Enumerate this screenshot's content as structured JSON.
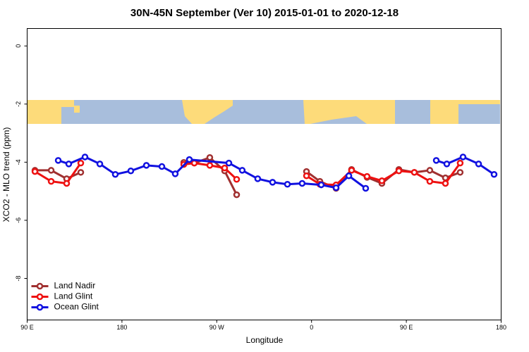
{
  "chart_data": {
    "type": "line",
    "title": "30N-45N September (Ver 10)   2015-01-01 to 2020-12-18",
    "x_label": "Longitude",
    "y_label": "XCO2 - MLO trend (ppm)",
    "xlim": [
      90,
      540
    ],
    "ylim": [
      -9.43,
      0.6
    ],
    "xticks": [
      {
        "value": 90,
        "label": "90 E"
      },
      {
        "value": 180,
        "label": "180"
      },
      {
        "value": 270,
        "label": "90 W"
      },
      {
        "value": 360,
        "label": "0"
      },
      {
        "value": 450,
        "label": "90 E"
      },
      {
        "value": 540,
        "label": "180"
      }
    ],
    "yticks": [
      0,
      -2,
      -4,
      -6,
      -8
    ],
    "legend_position": "bottom-left",
    "series": [
      {
        "name": "Land Nadir",
        "color": "#a03030",
        "x": [
          97.4,
          112.8,
          127.5,
          140.9,
          null,
          238.7,
          248.7,
          263.4,
          277.5,
          288.9,
          null,
          355.2,
          367.9,
          383.3,
          398.0,
          412.7,
          426.8,
          442.9,
          457.6,
          472.3,
          487.1,
          501.1
        ],
        "values": [
          -4.28,
          -4.28,
          -4.57,
          -4.35,
          null,
          -4.01,
          -4.03,
          -3.84,
          -4.3,
          -5.12,
          null,
          -4.32,
          -4.66,
          -4.9,
          -4.25,
          -4.52,
          -4.73,
          -4.25,
          -4.35,
          -4.28,
          -4.54,
          -4.35
        ]
      },
      {
        "name": "Land Glint",
        "color": "#ee1111",
        "x": [
          97.4,
          112.8,
          127.5,
          140.9,
          null,
          238.7,
          248.7,
          263.4,
          277.5,
          288.9,
          null,
          355.2,
          367.9,
          383.3,
          398.0,
          412.7,
          426.8,
          442.9,
          457.6,
          472.3,
          487.1,
          501.1
        ],
        "values": [
          -4.32,
          -4.66,
          -4.73,
          -4.03,
          null,
          -4.08,
          -4.03,
          -4.11,
          -4.2,
          -4.59,
          null,
          -4.47,
          -4.76,
          -4.78,
          -4.28,
          -4.49,
          -4.64,
          -4.3,
          -4.35,
          -4.66,
          -4.73,
          -4.03
        ]
      },
      {
        "name": "Ocean Glint",
        "color": "#1111e0",
        "x": [
          119.5,
          129.5,
          144.9,
          159.0,
          173.7,
          188.4,
          203.2,
          217.9,
          230.6,
          244.0,
          281.5,
          294.2,
          308.9,
          323.0,
          337.1,
          351.1,
          369.2,
          383.3,
          395.4,
          411.4,
          null,
          478.4,
          488.4,
          503.8,
          518.6,
          533.3
        ],
        "values": [
          -3.94,
          -4.06,
          -3.82,
          -4.06,
          -4.42,
          -4.3,
          -4.11,
          -4.15,
          -4.4,
          -3.91,
          -4.03,
          -4.28,
          -4.57,
          -4.69,
          -4.76,
          -4.73,
          -4.78,
          -4.88,
          -4.47,
          -4.9,
          null,
          -3.94,
          -4.06,
          -3.82,
          -4.06,
          -4.42
        ]
      }
    ]
  }
}
